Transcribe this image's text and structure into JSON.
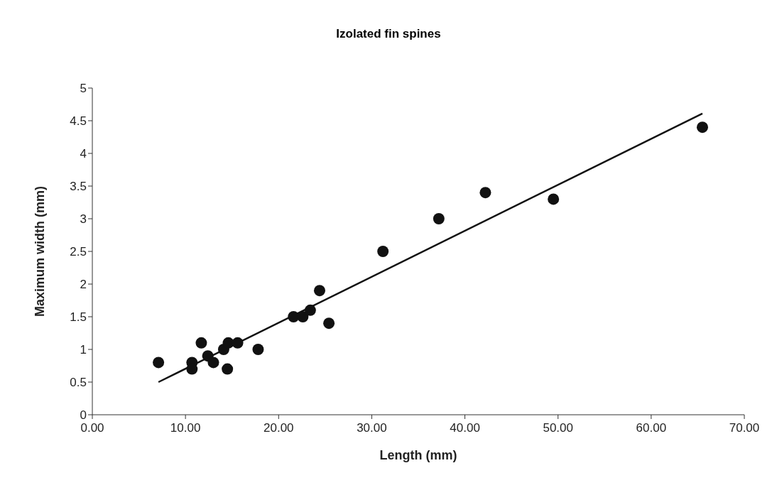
{
  "chart_data": {
    "type": "scatter",
    "title": "Izolated fin spines",
    "xlabel": "Length (mm)",
    "ylabel": "Maximum width (mm)",
    "xlim": [
      0,
      70
    ],
    "xticks": [
      {
        "value": 0,
        "label": "0.00"
      },
      {
        "value": 10,
        "label": "10.00"
      },
      {
        "value": 20,
        "label": "20.00"
      },
      {
        "value": 30,
        "label": "30.00"
      },
      {
        "value": 40,
        "label": "40.00"
      },
      {
        "value": 50,
        "label": "50.00"
      },
      {
        "value": 60,
        "label": "60.00"
      },
      {
        "value": 70,
        "label": "70.00"
      }
    ],
    "ylim": [
      0,
      5
    ],
    "yticks": [
      0,
      0.5,
      1,
      1.5,
      2,
      2.5,
      3,
      3.5,
      4,
      4.5,
      5
    ],
    "grid": false,
    "legend": false,
    "series": [
      {
        "color": "#111111",
        "marker": "circle",
        "x": [
          7.1,
          10.7,
          10.7,
          11.7,
          12.4,
          13.0,
          14.1,
          14.6,
          14.5,
          15.6,
          17.8,
          21.6,
          22.6,
          23.4,
          24.4,
          25.4,
          31.2,
          37.2,
          42.2,
          49.5,
          65.5
        ],
        "values": [
          0.8,
          0.8,
          0.7,
          1.1,
          0.9,
          0.8,
          1.0,
          1.1,
          0.7,
          1.1,
          1.0,
          1.5,
          1.5,
          1.6,
          1.9,
          1.4,
          2.5,
          3.0,
          3.4,
          3.3,
          4.4
        ]
      },
      {
        "type": "line",
        "color": "#111111",
        "marker": "none",
        "line_style": "solid",
        "x": [
          7.1,
          65.5
        ],
        "values": [
          0.5,
          4.61
        ]
      }
    ]
  }
}
